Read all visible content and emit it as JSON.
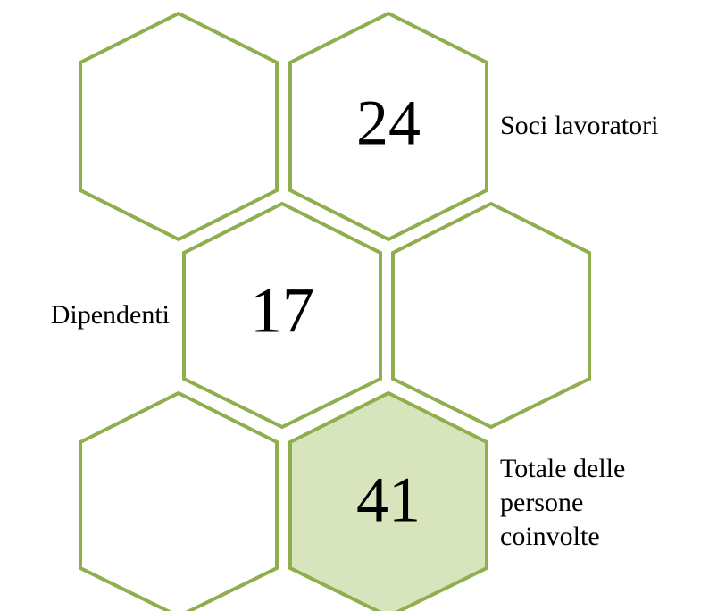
{
  "nodes": [
    {
      "value": 24,
      "label": [
        "Soci lavoratori"
      ]
    },
    {
      "value": 17,
      "label": [
        "Dipendenti"
      ]
    },
    {
      "value": 41,
      "label": [
        "Totale delle",
        "persone",
        "coinvolte"
      ]
    }
  ]
}
